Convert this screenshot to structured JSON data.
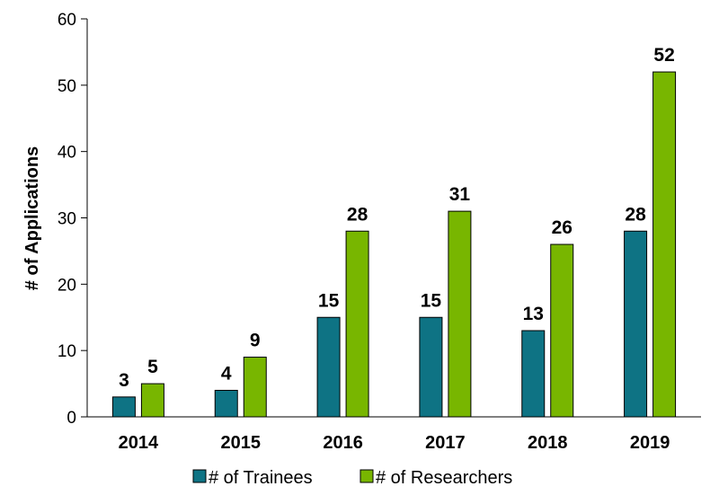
{
  "chart_data": {
    "type": "bar",
    "categories": [
      "2014",
      "2015",
      "2016",
      "2017",
      "2018",
      "2019"
    ],
    "series": [
      {
        "name": "# of Trainees",
        "values": [
          3,
          4,
          15,
          15,
          13,
          28
        ],
        "color": "#0e7384"
      },
      {
        "name": "# of Researchers",
        "values": [
          5,
          9,
          28,
          31,
          26,
          52
        ],
        "color": "#78b600"
      }
    ],
    "ylabel": "# of Applications",
    "xlabel": "",
    "ylim": [
      0,
      60
    ],
    "yticks": [
      "0",
      "10",
      "20",
      "30",
      "40",
      "50",
      "60"
    ],
    "grid": false,
    "legend_position": "bottom",
    "data_labels": true,
    "bar_outline_color": "#000000"
  }
}
